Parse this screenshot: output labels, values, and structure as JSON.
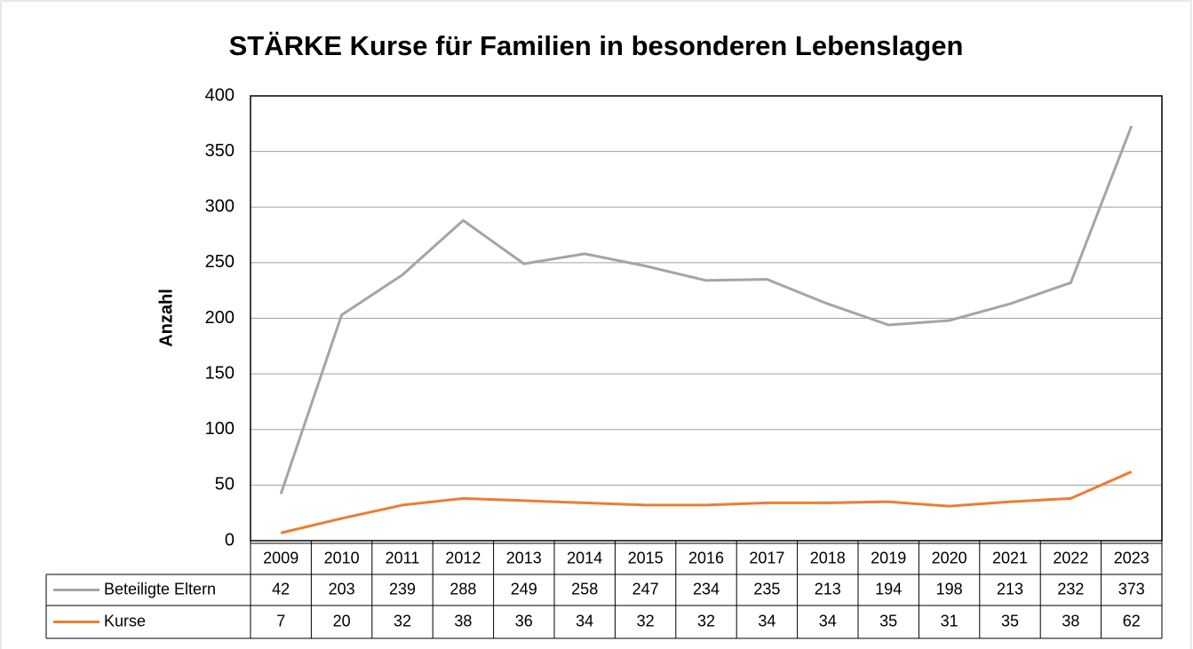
{
  "chart_data": {
    "type": "line",
    "title": "STÄRKE Kurse für Familien in besonderen Lebenslagen",
    "y_label": "Anzahl",
    "categories": [
      "2009",
      "2010",
      "2011",
      "2012",
      "2013",
      "2014",
      "2015",
      "2016",
      "2017",
      "2018",
      "2019",
      "2020",
      "2021",
      "2022",
      "2023"
    ],
    "series": [
      {
        "name": "Beteiligte Eltern",
        "color": "#a5a5a5",
        "values": [
          42,
          203,
          239,
          288,
          249,
          258,
          247,
          234,
          235,
          213,
          194,
          198,
          213,
          232,
          373
        ]
      },
      {
        "name": "Kurse",
        "color": "#ed7d31",
        "values": [
          7,
          20,
          32,
          38,
          36,
          34,
          32,
          32,
          34,
          34,
          35,
          31,
          35,
          38,
          62
        ]
      }
    ],
    "ylim": [
      0,
      400
    ],
    "yticks": [
      0,
      50,
      100,
      150,
      200,
      250,
      300,
      350,
      400
    ],
    "grid": true,
    "data_table": true
  }
}
